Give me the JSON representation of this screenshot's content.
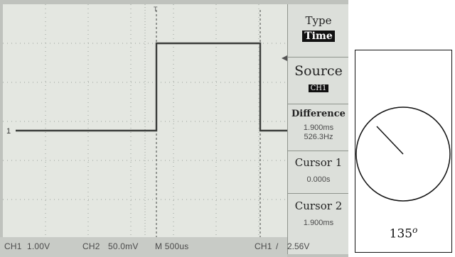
{
  "menu": {
    "type_label": "Type",
    "type_value": "Time",
    "source_label": "Source",
    "source_value": "CH1",
    "difference_label": "Difference",
    "difference_time": "1.900ms",
    "difference_freq": "526.3Hz",
    "cursor1_label": "Cursor 1",
    "cursor1_value": "0.000s",
    "cursor2_label": "Cursor 2",
    "cursor2_value": "1.900ms"
  },
  "trace": {
    "channel_marker": "1",
    "top_marker": "T"
  },
  "status": {
    "ch1": "CH1",
    "ch1_scale": "1.00V",
    "ch2": "CH2",
    "ch2_scale": "50.0mV",
    "time": "M 500us",
    "trigger_ch": "CH1",
    "trigger_sym": "/",
    "trigger_level": "2.56V"
  },
  "phase": {
    "angle_value": "135",
    "angle_unit": "o"
  },
  "colors": {
    "screen_bg": "#e4e7e1",
    "trace": "#3a3d3a",
    "grid": "#9aa19a"
  }
}
